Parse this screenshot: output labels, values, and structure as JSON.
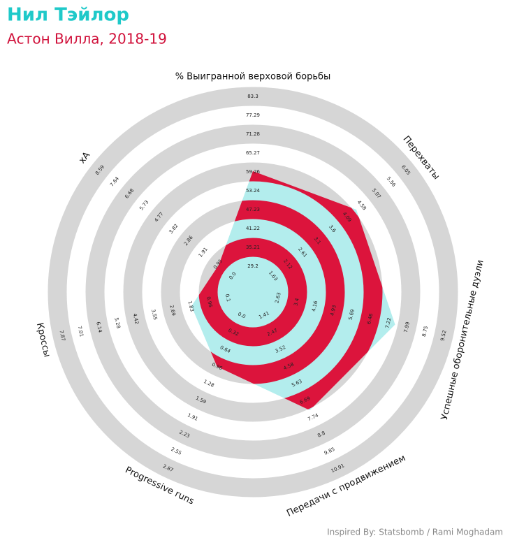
{
  "chart_data": {
    "type": "radar",
    "title": "Нил Тэйлор",
    "subtitle": "Астон Вилла, 2018-19",
    "credit": "Inspired By: Statsbomb / Rami Moghadam",
    "categories": [
      "% Выигранной верховой борьбы",
      "Перехваты",
      "Успешные оборонительные дуэли",
      "Передачи с продвижением",
      "Progressive runs",
      "Кроссы",
      "xA"
    ],
    "values": [
      59.5,
      4.4,
      7.5,
      7.3,
      0.96,
      1.8,
      0.9
    ],
    "axis_ticks": [
      [
        29.2,
        35.21,
        41.22,
        47.23,
        53.24,
        59.26,
        65.27,
        71.28,
        77.29,
        83.3
      ],
      [
        1.63,
        2.12,
        2.61,
        3.1,
        3.6,
        4.09,
        4.58,
        5.07,
        5.56,
        6.05
      ],
      [
        2.63,
        3.4,
        4.16,
        4.93,
        5.69,
        6.46,
        7.22,
        7.99,
        8.75,
        9.52
      ],
      [
        1.41,
        2.47,
        3.52,
        4.58,
        5.63,
        6.69,
        7.74,
        8.8,
        9.85,
        10.91
      ],
      [
        {
          "value": 0,
          "label": "0.0"
        },
        0.32,
        0.64,
        0.96,
        1.28,
        1.59,
        1.91,
        2.23,
        2.55,
        2.87
      ],
      [
        0.1,
        0.96,
        1.83,
        2.69,
        3.55,
        4.42,
        5.28,
        6.14,
        7.01,
        7.87
      ],
      [
        {
          "value": 0,
          "label": "0.0"
        },
        0.95,
        1.91,
        2.86,
        3.82,
        4.77,
        5.73,
        6.68,
        7.64,
        8.59
      ]
    ],
    "color": "#b3eded",
    "ring_color": "#dc143c",
    "grid_color": "#d6d6d6",
    "title_color": "#1fc9c9",
    "subtitle_color": "#d0103a"
  }
}
